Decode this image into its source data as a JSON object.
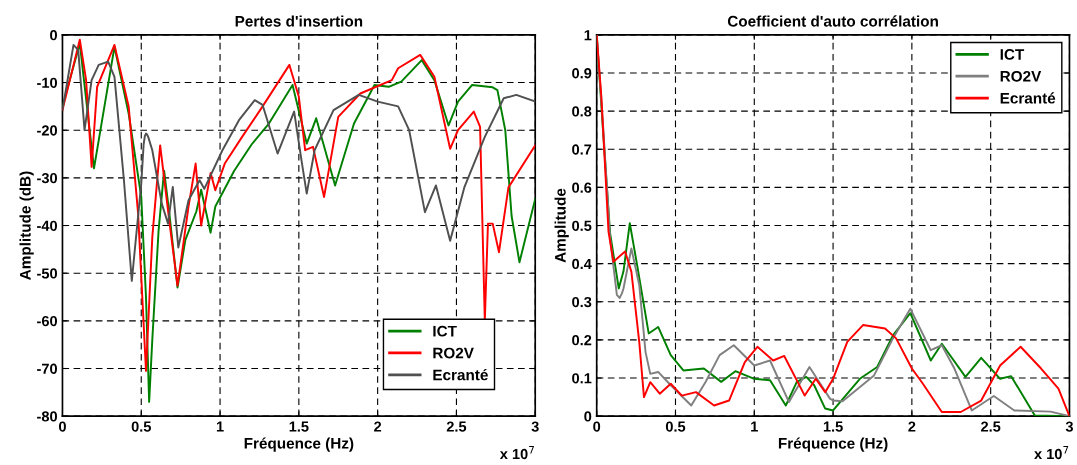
{
  "chart_data": [
    {
      "type": "line",
      "title": "Pertes d'insertion",
      "xlabel": "Fréquence (Hz)",
      "ylabel": "Amplitude (dB)",
      "xlim": [
        0,
        3
      ],
      "ylim": [
        -80,
        0
      ],
      "xticks": [
        0,
        0.5,
        1,
        1.5,
        2,
        2.5,
        3
      ],
      "yticks": [
        -80,
        -70,
        -60,
        -50,
        -40,
        -30,
        -20,
        -10,
        0
      ],
      "grid": true,
      "legend": "bottom right",
      "annotations": [
        "x 10$^{7}$"
      ],
      "series": [
        {
          "name": "ICT",
          "color": "#008000",
          "x": [
            0,
            0.11,
            0.2,
            0.33,
            0.42,
            0.5,
            0.53,
            0.55,
            0.57,
            0.61,
            0.645,
            0.68,
            0.73,
            0.78,
            0.85,
            0.88,
            0.94,
            0.97,
            1.09,
            1.2,
            1.31,
            1.46,
            1.55,
            1.61,
            1.73,
            1.85,
            1.98,
            2.07,
            2.15,
            2.28,
            2.36,
            2.45,
            2.51,
            2.6,
            2.73,
            2.76,
            2.81,
            2.85,
            2.9,
            3.0
          ],
          "values": [
            -15,
            -1.8,
            -28,
            -2.5,
            -16.5,
            -34,
            -55,
            -77,
            -64,
            -41,
            -28.5,
            -38,
            -53,
            -43,
            -37,
            -32.5,
            -41.5,
            -36,
            -28.5,
            -23,
            -18.6,
            -10.5,
            -22.8,
            -17.5,
            -31.6,
            -18.6,
            -10.5,
            -10.9,
            -9.8,
            -5.3,
            -9.5,
            -19,
            -14,
            -10.5,
            -11,
            -11.6,
            -20,
            -38,
            -47.7,
            -34.4
          ]
        },
        {
          "name": "RO2V",
          "color": "#ff0000",
          "x": [
            0,
            0.11,
            0.15,
            0.185,
            0.22,
            0.33,
            0.42,
            0.48,
            0.53,
            0.57,
            0.62,
            0.68,
            0.73,
            0.8,
            0.845,
            0.88,
            0.94,
            0.97,
            1.03,
            1.14,
            1.27,
            1.44,
            1.5,
            1.54,
            1.59,
            1.66,
            1.75,
            1.89,
            2.09,
            2.13,
            2.27,
            2.36,
            2.46,
            2.51,
            2.61,
            2.65,
            2.68,
            2.7,
            2.73,
            2.77,
            2.83,
            3.0
          ],
          "values": [
            -15.8,
            -1,
            -9.5,
            -27.7,
            -10.9,
            -2.1,
            -15,
            -37.5,
            -70.5,
            -42.5,
            -23.2,
            -39.6,
            -52.6,
            -36,
            -27,
            -40,
            -29,
            -32.6,
            -27,
            -21.4,
            -15,
            -6.3,
            -13,
            -24.2,
            -23.5,
            -34,
            -17.2,
            -12.3,
            -9.5,
            -7,
            -4.2,
            -8.8,
            -23.9,
            -20,
            -16.1,
            -19.3,
            -60,
            -39.6,
            -39.6,
            -45.6,
            -32,
            -23.2
          ]
        },
        {
          "name": "Ecranté",
          "color": "#505050",
          "x": [
            0,
            0.07,
            0.1,
            0.14,
            0.185,
            0.23,
            0.29,
            0.33,
            0.39,
            0.44,
            0.5,
            0.515,
            0.523,
            0.53,
            0.537,
            0.545,
            0.57,
            0.63,
            0.67,
            0.7,
            0.735,
            0.8,
            0.87,
            0.9,
            1.015,
            1.12,
            1.22,
            1.27,
            1.365,
            1.47,
            1.52,
            1.55,
            1.6,
            1.72,
            1.88,
            2.0,
            2.13,
            2.2,
            2.3,
            2.37,
            2.46,
            2.55,
            2.68,
            2.8,
            2.88,
            3.0
          ],
          "values": [
            -15.8,
            -2.1,
            -3.2,
            -20,
            -9.5,
            -6.3,
            -5.6,
            -8.8,
            -30.5,
            -51.6,
            -31.2,
            -23,
            -21.2,
            -20.7,
            -20.9,
            -21.5,
            -24.2,
            -35.4,
            -39.6,
            -31.9,
            -44.6,
            -34.7,
            -30.5,
            -32.3,
            -24.2,
            -17.9,
            -13.7,
            -14.7,
            -24.9,
            -16.1,
            -27,
            -33.3,
            -24.2,
            -15.8,
            -12.6,
            -14,
            -15,
            -20,
            -37.2,
            -31.6,
            -43.2,
            -32,
            -21.4,
            -13.3,
            -12.6,
            -14
          ]
        }
      ]
    },
    {
      "type": "line",
      "title": "Coefficient d'auto corrélation",
      "xlabel": "Fréquence (Hz)",
      "ylabel": "Amplitude",
      "xlim": [
        0,
        3
      ],
      "ylim": [
        0,
        1
      ],
      "xticks": [
        0,
        0.5,
        1,
        1.5,
        2,
        2.5,
        3
      ],
      "yticks": [
        0,
        0.1,
        0.2,
        0.3,
        0.4,
        0.5,
        0.6,
        0.7,
        0.8,
        0.9,
        1
      ],
      "grid": true,
      "legend": "top right",
      "annotations": [
        "x 10$^{7}$"
      ],
      "series": [
        {
          "name": "ICT",
          "color": "#008000",
          "x": [
            0,
            0.04,
            0.085,
            0.14,
            0.17,
            0.21,
            0.255,
            0.33,
            0.39,
            0.47,
            0.55,
            0.68,
            0.79,
            0.88,
            1.0,
            1.1,
            1.2,
            1.27,
            1.33,
            1.38,
            1.45,
            1.5,
            1.67,
            1.78,
            1.88,
            1.99,
            2.12,
            2.19,
            2.34,
            2.44,
            2.56,
            2.63,
            2.78,
            3.0
          ],
          "values": [
            1,
            0.75,
            0.48,
            0.335,
            0.38,
            0.506,
            0.4,
            0.217,
            0.234,
            0.16,
            0.12,
            0.125,
            0.09,
            0.118,
            0.098,
            0.094,
            0.028,
            0.09,
            0.103,
            0.081,
            0.02,
            0.015,
            0.098,
            0.129,
            0.212,
            0.27,
            0.146,
            0.19,
            0.103,
            0.153,
            0.098,
            0.105,
            0.002,
            0
          ]
        },
        {
          "name": "RO2V",
          "color": "#808080",
          "x": [
            0,
            0.04,
            0.085,
            0.128,
            0.145,
            0.16,
            0.17,
            0.22,
            0.27,
            0.31,
            0.34,
            0.39,
            0.47,
            0.6,
            0.69,
            0.78,
            0.87,
            1.0,
            1.1,
            1.22,
            1.35,
            1.48,
            1.5,
            1.56,
            1.76,
            1.88,
            1.99,
            2.12,
            2.19,
            2.27,
            2.38,
            2.52,
            2.65,
            2.88,
            3.0
          ],
          "values": [
            1,
            0.765,
            0.467,
            0.318,
            0.31,
            0.322,
            0.335,
            0.44,
            0.344,
            0.168,
            0.111,
            0.116,
            0.081,
            0.028,
            0.089,
            0.16,
            0.186,
            0.133,
            0.146,
            0.037,
            0.129,
            0.046,
            0.041,
            0.039,
            0.107,
            0.204,
            0.282,
            0.173,
            0.186,
            0.125,
            0.015,
            0.053,
            0.015,
            0.012,
            0
          ]
        },
        {
          "name": "Ecranté",
          "color": "#ff0000",
          "x": [
            0,
            0.03,
            0.075,
            0.106,
            0.18,
            0.22,
            0.27,
            0.3,
            0.34,
            0.4,
            0.47,
            0.54,
            0.63,
            0.745,
            0.84,
            0.94,
            1.02,
            1.12,
            1.19,
            1.32,
            1.39,
            1.45,
            1.5,
            1.59,
            1.69,
            1.83,
            1.9,
            2.0,
            2.07,
            2.19,
            2.31,
            2.44,
            2.56,
            2.69,
            2.82,
            2.93,
            3.0
          ],
          "values": [
            1,
            0.835,
            0.484,
            0.405,
            0.432,
            0.379,
            0.195,
            0.05,
            0.089,
            0.059,
            0.085,
            0.054,
            0.063,
            0.028,
            0.041,
            0.142,
            0.182,
            0.146,
            0.158,
            0.054,
            0.098,
            0.063,
            0.098,
            0.195,
            0.239,
            0.23,
            0.204,
            0.125,
            0.085,
            0.011,
            0.011,
            0.041,
            0.133,
            0.182,
            0.125,
            0.072,
            0
          ]
        }
      ]
    }
  ]
}
